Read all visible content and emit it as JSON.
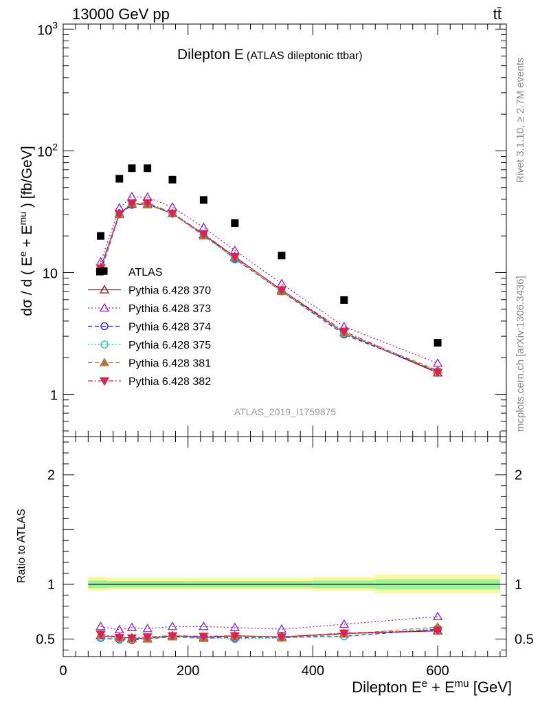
{
  "header": {
    "energy_label": "13000 GeV pp",
    "process_label": "tt̄"
  },
  "side_labels": {
    "rivet": "Rivet 3.1.10, ≥ 2.7M events",
    "mcplots": "mcplots.cern.ch [arXiv:1306.3436]"
  },
  "chart_data": [
    {
      "type": "scatter",
      "title": "Dilepton E",
      "subtitle": "(ATLAS dileptonic ttbar)",
      "analysis_id": "ATLAS_2019_I1759875",
      "ylabel": "dσ / d ( Ee + Emu ) [fb/GeV]",
      "yscale": "log",
      "ylim": [
        0.45,
        1100
      ],
      "xlim": [
        0,
        710
      ],
      "y_ticks": [
        {
          "v": 1,
          "label": "1",
          "sup": ""
        },
        {
          "v": 10,
          "label": "10",
          "sup": ""
        },
        {
          "v": 100,
          "label": "10",
          "sup": "2"
        },
        {
          "v": 1000,
          "label": "10",
          "sup": "3"
        }
      ],
      "legend_position": "middle-left",
      "x": [
        60,
        90,
        110,
        135,
        175,
        225,
        275,
        350,
        450,
        600
      ],
      "data": {
        "name": "ATLAS",
        "x": [
          60,
          65,
          90,
          110,
          135,
          175,
          225,
          275,
          350,
          450,
          600
        ],
        "values": [
          20,
          10.3,
          59,
          72,
          72,
          58,
          39.5,
          25.5,
          13.8,
          5.95,
          2.65
        ]
      },
      "series": [
        {
          "name": "Pythia 6.428 370",
          "color": "#a01010",
          "marker": "triangle-open",
          "dash": "",
          "values": [
            11,
            30.5,
            36.5,
            36.5,
            30.5,
            20.5,
            13.5,
            7.2,
            3.2,
            1.5
          ]
        },
        {
          "name": "Pythia 6.428 373",
          "color": "#9020c0",
          "marker": "triangle-open",
          "dash": "2,3",
          "values": [
            12.2,
            34,
            42,
            41.5,
            34.5,
            23.5,
            15.2,
            8.1,
            3.6,
            1.8
          ]
        },
        {
          "name": "Pythia 6.428 374",
          "color": "#1a1ae0",
          "marker": "circle-open",
          "dash": "6,4",
          "values": [
            10.2,
            30,
            36,
            36.5,
            30.5,
            20.5,
            13,
            7,
            3.1,
            1.55
          ]
        },
        {
          "name": "Pythia 6.428 375",
          "color": "#10c8c0",
          "marker": "circle-open",
          "dash": "2,3",
          "values": [
            10.3,
            30,
            36.5,
            36.5,
            30.5,
            20.5,
            12.8,
            7.1,
            3.15,
            1.55
          ]
        },
        {
          "name": "Pythia 6.428 381",
          "color": "#b07840",
          "marker": "triangle-filled",
          "dash": "6,4",
          "values": [
            10.8,
            30,
            37,
            36,
            30.5,
            20,
            13.2,
            7,
            3.2,
            1.58
          ]
        },
        {
          "name": "Pythia 6.428 382",
          "color": "#e02050",
          "marker": "triangle-down-filled",
          "dash": "7,3,2,3",
          "values": [
            10.9,
            30.5,
            37,
            37.5,
            30.8,
            20.8,
            13.5,
            7.2,
            3.3,
            1.52
          ]
        }
      ]
    },
    {
      "type": "line",
      "ylabel": "Ratio to ATLAS",
      "xlabel": "Dilepton Ee + Emu [GeV]",
      "xlim": [
        0,
        710
      ],
      "ylim": [
        0.34,
        2.35
      ],
      "x_ticks": [
        0,
        200,
        400,
        600
      ],
      "y_ticks": [
        0.5,
        1,
        2
      ],
      "x": [
        60,
        90,
        110,
        135,
        175,
        225,
        275,
        350,
        450,
        600
      ],
      "bands": [
        {
          "x_from": 40,
          "x_to": 70,
          "outer": [
            0.94,
            1.07
          ],
          "inner": [
            0.965,
            1.035
          ]
        },
        {
          "x_from": 70,
          "x_to": 200,
          "outer": [
            0.95,
            1.06
          ],
          "inner": [
            0.97,
            1.03
          ]
        },
        {
          "x_from": 200,
          "x_to": 400,
          "outer": [
            0.95,
            1.06
          ],
          "inner": [
            0.97,
            1.03
          ]
        },
        {
          "x_from": 400,
          "x_to": 500,
          "outer": [
            0.94,
            1.07
          ],
          "inner": [
            0.965,
            1.035
          ]
        },
        {
          "x_from": 500,
          "x_to": 700,
          "outer": [
            0.92,
            1.09
          ],
          "inner": [
            0.955,
            1.045
          ]
        }
      ],
      "series": [
        {
          "name": "Pythia 6.428 370",
          "values": [
            0.53,
            0.515,
            0.51,
            0.505,
            0.53,
            0.515,
            0.53,
            0.52,
            0.55,
            0.575
          ]
        },
        {
          "name": "Pythia 6.428 373",
          "values": [
            0.615,
            0.585,
            0.605,
            0.595,
            0.615,
            0.615,
            0.605,
            0.59,
            0.635,
            0.705
          ]
        },
        {
          "name": "Pythia 6.428 374",
          "values": [
            0.51,
            0.495,
            0.49,
            0.505,
            0.525,
            0.52,
            0.51,
            0.515,
            0.525,
            0.59
          ]
        },
        {
          "name": "Pythia 6.428 375",
          "values": [
            0.515,
            0.5,
            0.505,
            0.505,
            0.525,
            0.51,
            0.5,
            0.51,
            0.525,
            0.6
          ]
        },
        {
          "name": "Pythia 6.428 381",
          "values": [
            0.54,
            0.51,
            0.5,
            0.5,
            0.52,
            0.505,
            0.52,
            0.51,
            0.545,
            0.61
          ]
        },
        {
          "name": "Pythia 6.428 382",
          "values": [
            0.545,
            0.515,
            0.51,
            0.52,
            0.53,
            0.525,
            0.53,
            0.52,
            0.555,
            0.58
          ]
        }
      ]
    }
  ]
}
